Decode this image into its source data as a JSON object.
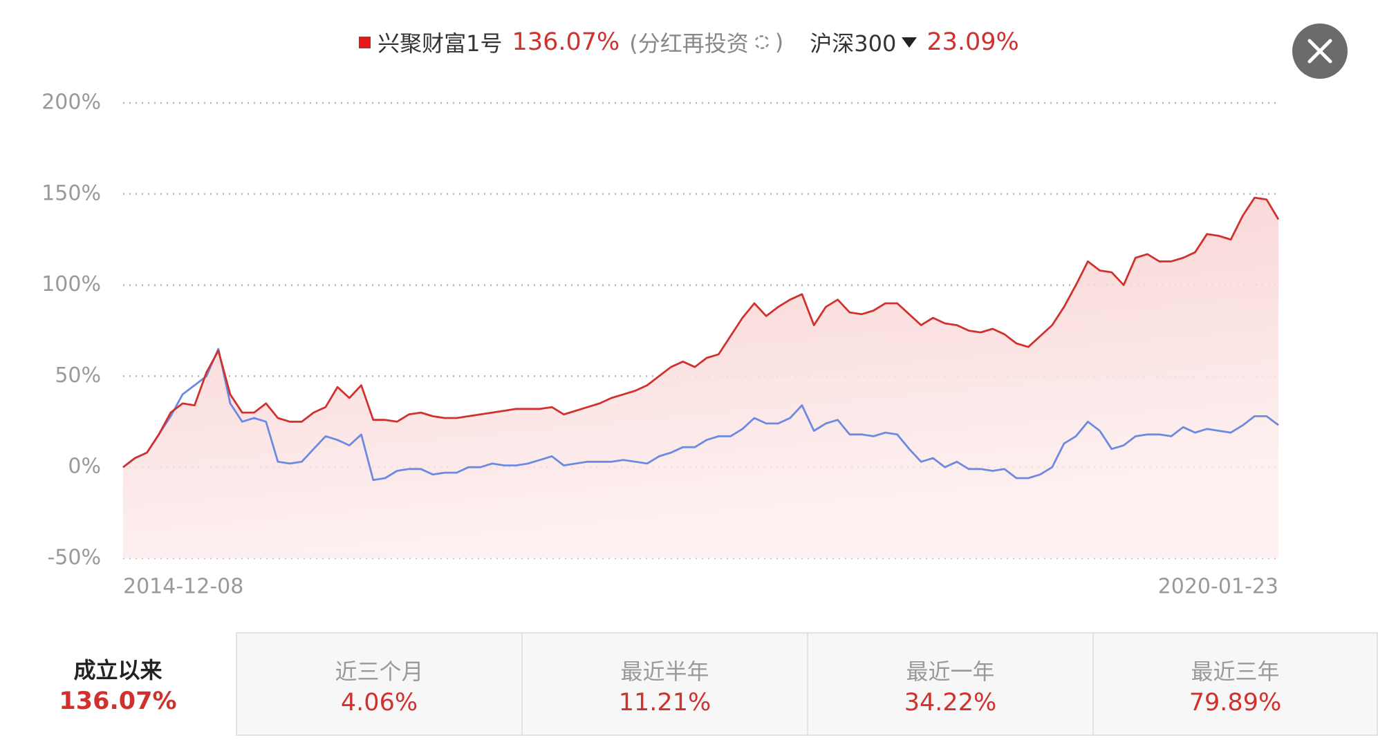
{
  "chart_data": {
    "type": "line",
    "series": [
      {
        "name": "兴聚财富1号",
        "color": "#d0312d",
        "return": "136.07%",
        "values": [
          0,
          5,
          8,
          18,
          30,
          35,
          34,
          52,
          64,
          40,
          30,
          30,
          35,
          27,
          25,
          25,
          30,
          33,
          44,
          38,
          45,
          26,
          26,
          25,
          29,
          30,
          28,
          27,
          27,
          28,
          29,
          30,
          31,
          32,
          32,
          32,
          33,
          29,
          31,
          33,
          35,
          38,
          40,
          42,
          45,
          50,
          55,
          58,
          55,
          60,
          62,
          72,
          82,
          90,
          83,
          88,
          92,
          95,
          78,
          88,
          92,
          85,
          84,
          86,
          90,
          90,
          84,
          78,
          82,
          79,
          78,
          75,
          74,
          76,
          73,
          68,
          66,
          72,
          78,
          88,
          100,
          113,
          108,
          107,
          100,
          115,
          117,
          113,
          113,
          115,
          118,
          128,
          127,
          125,
          138,
          148,
          147,
          136.07
        ]
      },
      {
        "name": "沪深300",
        "color": "#6b8ae0",
        "return": "23.09%",
        "values": [
          0,
          5,
          8,
          18,
          28,
          40,
          45,
          50,
          65,
          35,
          25,
          27,
          25,
          3,
          2,
          3,
          10,
          17,
          15,
          12,
          18,
          -7,
          -6,
          -2,
          -1,
          -1,
          -4,
          -3,
          -3,
          0,
          0,
          2,
          1,
          1,
          2,
          4,
          6,
          1,
          2,
          3,
          3,
          3,
          4,
          3,
          2,
          6,
          8,
          11,
          11,
          15,
          17,
          17,
          21,
          27,
          24,
          24,
          27,
          34,
          20,
          24,
          26,
          18,
          18,
          17,
          19,
          18,
          10,
          3,
          5,
          0,
          3,
          -1,
          -1,
          -2,
          -1,
          -6,
          -6,
          -4,
          0,
          13,
          17,
          25,
          20,
          10,
          12,
          17,
          18,
          18,
          17,
          22,
          19,
          21,
          20,
          19,
          23,
          28,
          28,
          23.09
        ]
      }
    ],
    "dividend_note": "(分红再投资",
    "dividend_note_close": ")",
    "categories": [
      "2014-12-08",
      null,
      null,
      null,
      null,
      null,
      null,
      null,
      null,
      null,
      null,
      null,
      null,
      null,
      null,
      null,
      null,
      null,
      null,
      null,
      null,
      null,
      null,
      null,
      null,
      null,
      null,
      null,
      null,
      null,
      null,
      null,
      null,
      null,
      null,
      null,
      null,
      null,
      null,
      null,
      null,
      null,
      null,
      null,
      null,
      null,
      null,
      null,
      null,
      null,
      null,
      null,
      null,
      null,
      null,
      null,
      null,
      null,
      null,
      null,
      null,
      null,
      null,
      null,
      null,
      null,
      null,
      null,
      null,
      null,
      null,
      null,
      null,
      null,
      null,
      null,
      null,
      null,
      null,
      null,
      null,
      null,
      null,
      null,
      null,
      null,
      null,
      null,
      null,
      null,
      null,
      null,
      null,
      null,
      null,
      null,
      null,
      "2020-01-23"
    ],
    "ylim": [
      -50,
      200
    ],
    "yticks": [
      {
        "value": -50,
        "label": "-50%"
      },
      {
        "value": 0,
        "label": "0%"
      },
      {
        "value": 50,
        "label": "50%"
      },
      {
        "value": 100,
        "label": "100%"
      },
      {
        "value": 150,
        "label": "150%"
      },
      {
        "value": 200,
        "label": "200%"
      }
    ],
    "grid": true
  },
  "periods": [
    {
      "label": "成立以来",
      "value": "136.07%"
    },
    {
      "label": "近三个月",
      "value": "4.06%"
    },
    {
      "label": "最近半年",
      "value": "11.21%"
    },
    {
      "label": "最近一年",
      "value": "34.22%"
    },
    {
      "label": "最近三年",
      "value": "79.89%"
    }
  ]
}
